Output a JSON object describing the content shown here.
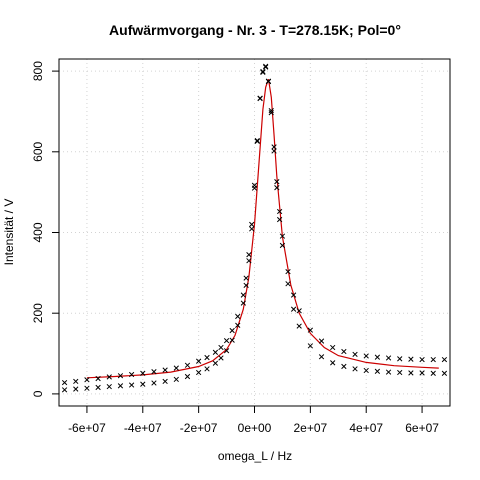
{
  "chart_data": {
    "type": "scatter",
    "title": "Aufwärmvorgang - Nr. 3 - T=278.15K; Pol=0°",
    "xlabel": "omega_L / Hz",
    "ylabel": "Intensität / V",
    "xlim": [
      -70000000,
      70000000
    ],
    "ylim": [
      -30,
      830
    ],
    "grid": true,
    "x_ticks": [
      -60000000,
      -40000000,
      -20000000,
      0,
      20000000,
      40000000,
      60000000
    ],
    "x_tick_labels": [
      "-6e+07",
      "-4e+07",
      "-2e+07",
      "0e+00",
      "2e+07",
      "4e+07",
      "6e+07"
    ],
    "y_ticks": [
      0,
      200,
      400,
      600,
      800
    ],
    "y_tick_labels": [
      "0",
      "200",
      "400",
      "600",
      "800"
    ],
    "marker": "x",
    "series": [
      {
        "kind": "points",
        "color": "#000000",
        "x": [
          -68000000,
          -64000000,
          -60000000,
          -56000000,
          -52000000,
          -48000000,
          -44000000,
          -40000000,
          -36000000,
          -32000000,
          -28000000,
          -24000000,
          -20000000,
          -17000000,
          -14000000,
          -12000000,
          -10000000,
          -8000000,
          -6000000,
          -4000000,
          -3000000,
          -2000000,
          -1000000,
          0,
          1000000,
          2000000,
          3000000,
          4000000,
          5000000,
          6000000,
          7000000,
          8000000,
          9000000,
          10000000,
          12000000,
          14000000,
          16000000,
          20000000,
          24000000,
          28000000,
          32000000,
          36000000,
          40000000,
          44000000,
          48000000,
          52000000,
          56000000,
          60000000,
          64000000,
          68000000
        ],
        "y": [
          28,
          31,
          35,
          38,
          42,
          45,
          48,
          51,
          55,
          59,
          64,
          71,
          81,
          90,
          103,
          115,
          132,
          157,
          192,
          245,
          287,
          345,
          420,
          517,
          628,
          732,
          797,
          810,
          775,
          702,
          612,
          526,
          452,
          391,
          303,
          245,
          206,
          158,
          131,
          115,
          105,
          98,
          94,
          91,
          89,
          87,
          86,
          85,
          85,
          85
        ]
      },
      {
        "kind": "points",
        "color": "#000000",
        "x": [
          -68000000,
          -64000000,
          -60000000,
          -56000000,
          -52000000,
          -48000000,
          -44000000,
          -40000000,
          -36000000,
          -32000000,
          -28000000,
          -24000000,
          -20000000,
          -17000000,
          -14000000,
          -12000000,
          -10000000,
          -8000000,
          -6000000,
          -4000000,
          -3000000,
          -2000000,
          -1000000,
          0,
          1000000,
          2000000,
          3000000,
          4000000,
          5000000,
          6000000,
          7000000,
          8000000,
          9000000,
          10000000,
          12000000,
          14000000,
          16000000,
          20000000,
          24000000,
          28000000,
          32000000,
          36000000,
          40000000,
          44000000,
          48000000,
          52000000,
          56000000,
          60000000,
          64000000,
          68000000
        ],
        "y": [
          10,
          12,
          14,
          16,
          18,
          20,
          22,
          24,
          27,
          31,
          36,
          43,
          53,
          62,
          76,
          89,
          107,
          133,
          170,
          225,
          269,
          330,
          409,
          510,
          626,
          733,
          799,
          812,
          774,
          697,
          602,
          511,
          432,
          368,
          273,
          210,
          168,
          119,
          92,
          77,
          68,
          62,
          58,
          56,
          54,
          53,
          52,
          52,
          51,
          51
        ]
      },
      {
        "kind": "fit-line",
        "color": "#cc0000",
        "x": [
          -60000000,
          -50000000,
          -40000000,
          -30000000,
          -20000000,
          -15000000,
          -10000000,
          -7000000,
          -4000000,
          -2000000,
          0,
          2000000,
          3000000,
          4000000,
          5000000,
          6000000,
          7000000,
          8000000,
          10000000,
          13000000,
          16000000,
          20000000,
          25000000,
          30000000,
          40000000,
          50000000,
          60000000,
          66000000
        ],
        "y": [
          40,
          43,
          47,
          54,
          68,
          82,
          110,
          145,
          210,
          290,
          420,
          610,
          705,
          760,
          780,
          735,
          640,
          540,
          390,
          270,
          200,
          150,
          115,
          95,
          78,
          70,
          66,
          64
        ]
      }
    ]
  }
}
